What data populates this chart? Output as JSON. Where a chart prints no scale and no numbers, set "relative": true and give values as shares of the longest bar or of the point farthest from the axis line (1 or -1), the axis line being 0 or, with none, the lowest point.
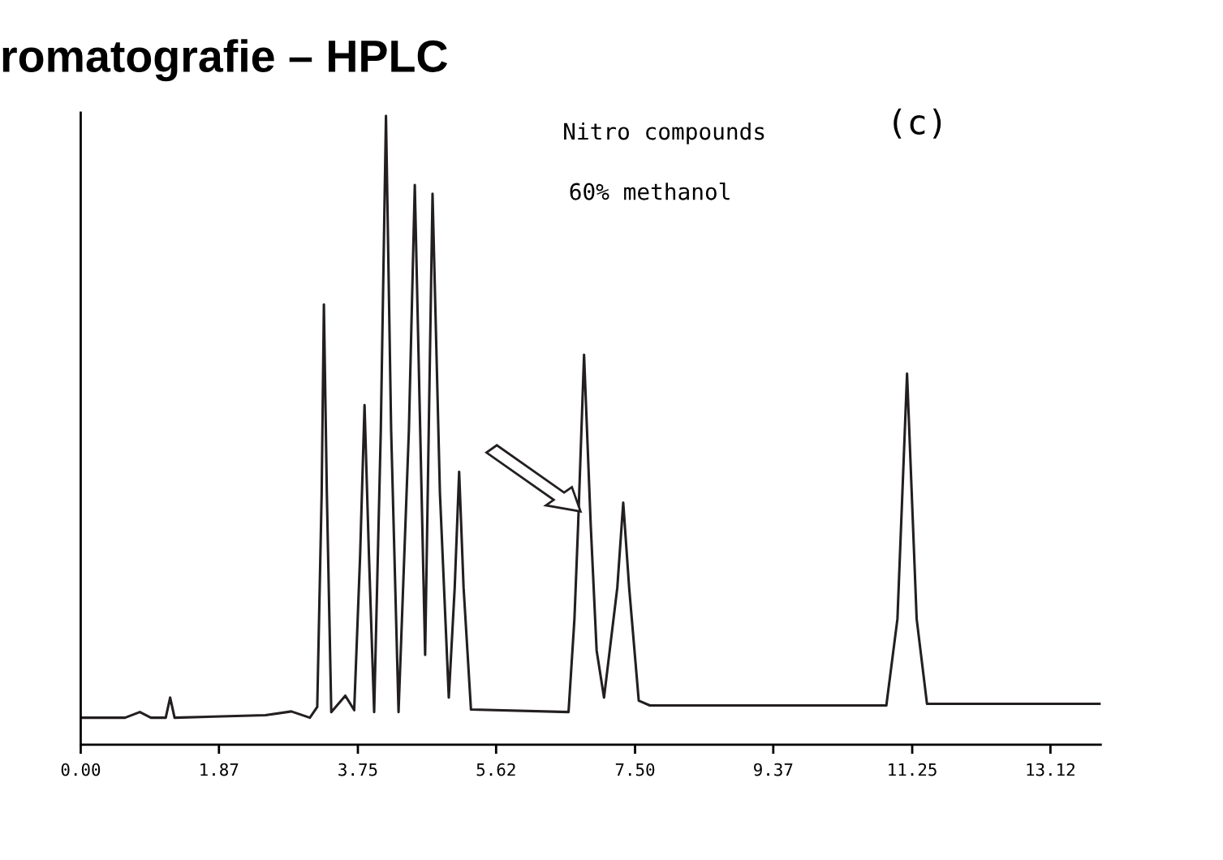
{
  "chart_data": {
    "type": "line",
    "title": "romatografie – HPLC",
    "relative": true,
    "annotations": [
      "Nitro compounds",
      "60% methanol",
      "(c)"
    ],
    "xlim": [
      0,
      13.8
    ],
    "xticks": [
      {
        "value": 0,
        "label": "0.00"
      },
      1.87,
      3.75,
      5.62,
      {
        "value": 7.5,
        "label": "7.50"
      },
      9.37,
      11.25,
      13.12
    ],
    "grid": false,
    "legend": false,
    "marker": "none",
    "line_style": "solid",
    "series": [
      {
        "color": "#231f20",
        "x": [
          0.0,
          0.6,
          0.8,
          0.95,
          1.15,
          1.21,
          1.27,
          2.5,
          2.85,
          3.1,
          3.2,
          3.26,
          3.29,
          3.33,
          3.39,
          3.58,
          3.7,
          3.78,
          3.84,
          3.9,
          3.97,
          4.06,
          4.13,
          4.2,
          4.3,
          4.44,
          4.52,
          4.66,
          4.76,
          4.86,
          4.98,
          5.06,
          5.12,
          5.18,
          5.28,
          6.6,
          6.68,
          6.73,
          6.81,
          6.9,
          6.98,
          7.08,
          7.26,
          7.34,
          7.42,
          7.55,
          7.7,
          10.9,
          11.05,
          11.18,
          11.31,
          11.45,
          13.79
        ],
        "values": [
          0.043,
          0.043,
          0.052,
          0.043,
          0.043,
          0.075,
          0.043,
          0.047,
          0.053,
          0.043,
          0.06,
          0.4,
          0.7,
          0.4,
          0.052,
          0.078,
          0.055,
          0.3,
          0.54,
          0.3,
          0.052,
          0.5,
          1.0,
          0.5,
          0.052,
          0.5,
          0.89,
          0.143,
          0.876,
          0.4,
          0.075,
          0.25,
          0.434,
          0.25,
          0.056,
          0.052,
          0.2,
          0.35,
          0.62,
          0.35,
          0.15,
          0.075,
          0.25,
          0.385,
          0.25,
          0.07,
          0.0625,
          0.0625,
          0.2,
          0.59,
          0.2,
          0.065,
          0.065
        ]
      }
    ]
  }
}
